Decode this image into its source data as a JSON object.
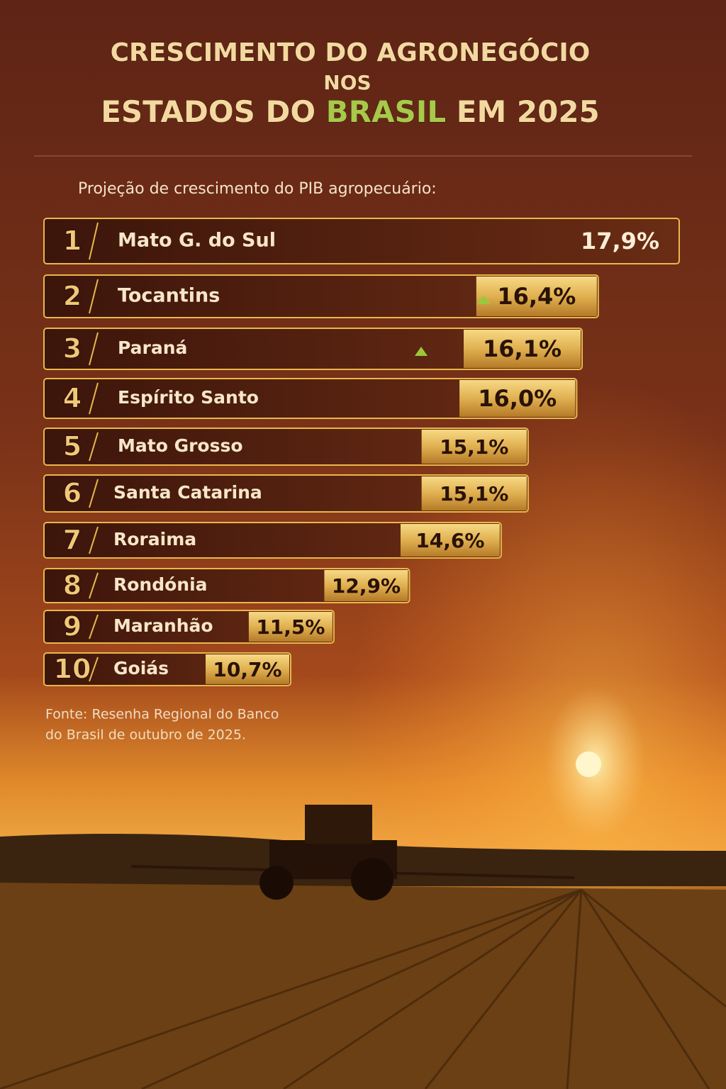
{
  "chart_data": {
    "type": "bar",
    "title": {
      "line1": "CRESCIMENTO DO AGRONEGÓCIO",
      "line2": "NOS",
      "line3": [
        "ESTADOS DO",
        "BRASIL",
        "EM 2025"
      ]
    },
    "subtitle": "Projeção de crescimento do PIB agropecuário:",
    "ranks": [
      "1",
      "2",
      "3",
      "4",
      "5",
      "6",
      "7",
      "8",
      "9",
      "10"
    ],
    "categories": [
      "Mato G. do Sul",
      "Tocantins",
      "Paraná",
      "Espírito Santo",
      "Mato Grosso",
      "Santa Catarina",
      "Roraima",
      "Rondónia",
      "Maranhão",
      "Goiás"
    ],
    "values": [
      17.9,
      16.4,
      16.1,
      16.0,
      15.1,
      15.1,
      14.6,
      12.9,
      11.5,
      10.7
    ],
    "value_labels": [
      "17,9%",
      "16,4%",
      "16,1%",
      "16,0%",
      "15,1%",
      "15,1%",
      "14,6%",
      "12,9%",
      "11,5%",
      "10,7%"
    ],
    "source": [
      "Fonte: Resenha Regional do Banco",
      "do Brasil de outubro de 2025."
    ],
    "color": "#e8b84a"
  }
}
